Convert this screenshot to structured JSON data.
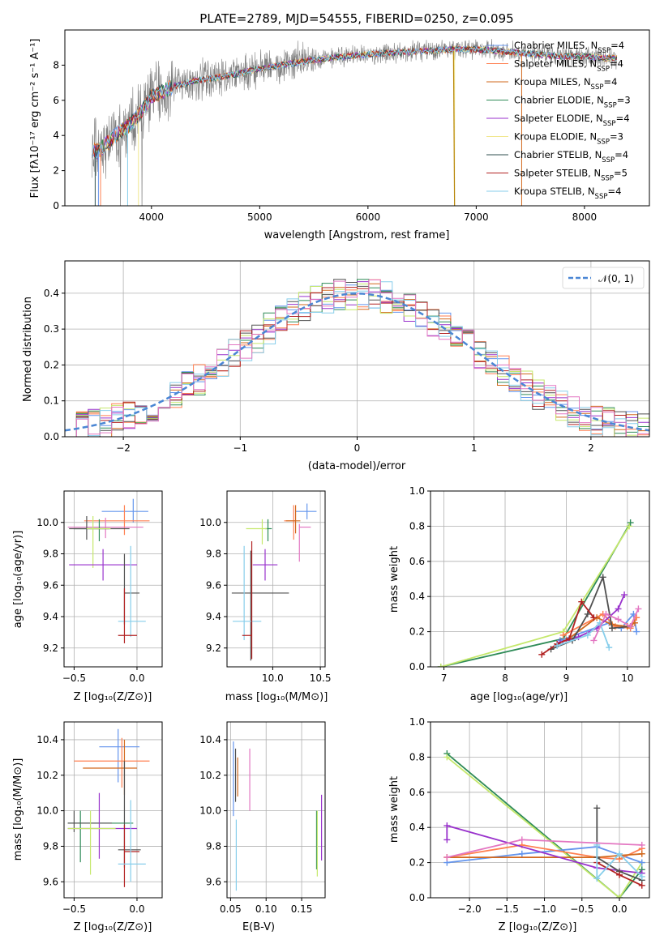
{
  "chart_data": [
    {
      "id": "spectrum",
      "type": "line",
      "title": "PLATE=2789, MJD=54555, FIBERID=0250, z=0.095",
      "xlabel": "wavelength [Angstrom, rest frame]",
      "ylabel": "Flux [fλ10⁻¹⁷ erg cm⁻² s⁻¹ A⁻¹]",
      "xlim": [
        3200,
        8600
      ],
      "ylim": [
        0,
        10
      ],
      "xticks": [
        4000,
        5000,
        6000,
        7000,
        8000
      ],
      "yticks": [
        0,
        2,
        4,
        6,
        8
      ],
      "grid": false,
      "legend_position": "top-right",
      "data_color": "#808080",
      "continuum": {
        "x": [
          3450,
          3500,
          3600,
          3700,
          3800,
          3900,
          4000,
          4100,
          4200,
          4400,
          4600,
          4800,
          5000,
          5200,
          5500,
          5800,
          6000,
          6200,
          6500,
          6800,
          7000,
          7200,
          7400,
          7600,
          7800,
          8000,
          8200,
          8300
        ],
        "y": [
          3.2,
          3.1,
          3.6,
          4.2,
          4.6,
          5.3,
          6.2,
          6.5,
          6.8,
          7.1,
          7.3,
          7.5,
          7.8,
          8.0,
          8.3,
          8.5,
          8.6,
          8.7,
          8.8,
          8.9,
          8.9,
          8.8,
          8.7,
          8.6,
          8.5,
          8.5,
          8.4,
          8.4
        ]
      },
      "legend": [
        {
          "name": "Chabrier MILES, N_SSP=4",
          "color": "#6495ed"
        },
        {
          "name": "Salpeter MILES, N_SSP=4",
          "color": "#ff7f50"
        },
        {
          "name": "Kroupa MILES, N_SSP=4",
          "color": "#d2691e"
        },
        {
          "name": "Chabrier ELODIE, N_SSP=3",
          "color": "#2e8b57"
        },
        {
          "name": "Salpeter ELODIE, N_SSP=4",
          "color": "#9932cc"
        },
        {
          "name": "Kroupa ELODIE, N_SSP=3",
          "color": "#f0e68c"
        },
        {
          "name": "Chabrier STELIB, N_SSP=4",
          "color": "#2f4f4f"
        },
        {
          "name": "Salpeter STELIB, N_SSP=5",
          "color": "#b22222"
        },
        {
          "name": "Kroupa STELIB, N_SSP=4",
          "color": "#87ceeb"
        }
      ]
    },
    {
      "id": "residuals",
      "type": "line",
      "xlabel": "(data-model)/error",
      "ylabel": "Normed distribution",
      "xlim": [
        -2.5,
        2.5
      ],
      "ylim": [
        0,
        0.49
      ],
      "xticks": [
        -2,
        -1,
        0,
        1,
        2
      ],
      "yticks": [
        0.0,
        0.1,
        0.2,
        0.3,
        0.4
      ],
      "grid": true,
      "legend_label": "𝒩(0, 1)",
      "legend_position": "top-right",
      "gaussian_color": "#4a86d4",
      "hist_colors": [
        "#6495ed",
        "#ff7f50",
        "#d2691e",
        "#2e8b57",
        "#9932cc",
        "#c5e86c",
        "#505050",
        "#b22222",
        "#87ceeb",
        "#e377c2"
      ],
      "hist_bin_width": 0.1
    },
    {
      "id": "age_vs_Z",
      "type": "scatter",
      "xlabel": "Z [log₁₀(Z/Z⊙)]",
      "ylabel": "age  [log₁₀(age/yr)]",
      "xlim": [
        -0.58,
        0.2
      ],
      "ylim": [
        9.08,
        10.2
      ],
      "xticks": [
        -0.5,
        0.0
      ],
      "yticks": [
        9.2,
        9.4,
        9.6,
        9.8,
        10.0
      ],
      "points": [
        {
          "x": -0.03,
          "y": 10.07,
          "xerr": [
            0.25,
            0.12
          ],
          "yerr": [
            0.07,
            0.08
          ],
          "color": "#6495ed"
        },
        {
          "x": -0.1,
          "y": 10.01,
          "xerr": [
            0.32,
            0.2
          ],
          "yerr": [
            0.09,
            0.1
          ],
          "color": "#ff7f50"
        },
        {
          "x": -0.25,
          "y": 9.97,
          "xerr": [
            0.3,
            0.3
          ],
          "yerr": [
            0.07,
            0.06
          ],
          "color": "#e377c2"
        },
        {
          "x": -0.3,
          "y": 9.96,
          "xerr": [
            0.2,
            0.08
          ],
          "yerr": [
            0.08,
            0.06
          ],
          "color": "#2e8b57"
        },
        {
          "x": -0.4,
          "y": 9.96,
          "xerr": [
            0.14,
            0.34
          ],
          "yerr": [
            0.07,
            0.08
          ],
          "color": "#505050"
        },
        {
          "x": -0.35,
          "y": 9.96,
          "xerr": [
            0.05,
            0.14
          ],
          "yerr": [
            0.25,
            0.08
          ],
          "color": "#c5e86c"
        },
        {
          "x": -0.27,
          "y": 9.73,
          "xerr": [
            0.27,
            0.27
          ],
          "yerr": [
            0.1,
            0.1
          ],
          "color": "#9932cc"
        },
        {
          "x": -0.1,
          "y": 9.55,
          "xerr": [
            0.0,
            0.12
          ],
          "yerr": [
            0.2,
            0.25
          ],
          "color": "#505050"
        },
        {
          "x": -0.05,
          "y": 9.37,
          "xerr": [
            0.1,
            0.12
          ],
          "yerr": [
            0.1,
            0.48
          ],
          "color": "#87ceeb"
        },
        {
          "x": -0.1,
          "y": 9.28,
          "xerr": [
            0.05,
            0.1
          ],
          "yerr": [
            0.05,
            0.3
          ],
          "color": "#b22222"
        }
      ]
    },
    {
      "id": "age_vs_mass",
      "type": "scatter",
      "xlabel": "mass [log₁₀(M/M⊙)]",
      "ylabel": "",
      "xlim": [
        9.52,
        10.55
      ],
      "ylim": [
        9.08,
        10.2
      ],
      "xticks": [
        10.0,
        10.5
      ],
      "yticks": [
        9.2,
        9.4,
        9.6,
        9.8,
        10.0
      ],
      "points": [
        {
          "x": 10.36,
          "y": 10.07,
          "xerr": [
            0.12,
            0.1
          ],
          "yerr": [
            0.05,
            0.05
          ],
          "color": "#6495ed"
        },
        {
          "x": 10.22,
          "y": 10.01,
          "xerr": [
            0.1,
            0.02
          ],
          "yerr": [
            0.12,
            0.1
          ],
          "color": "#ff7f50"
        },
        {
          "x": 10.24,
          "y": 10.01,
          "xerr": [
            0.1,
            0.05
          ],
          "yerr": [
            0.08,
            0.1
          ],
          "color": "#d2691e"
        },
        {
          "x": 10.28,
          "y": 9.97,
          "xerr": [
            0.0,
            0.12
          ],
          "yerr": [
            0.22,
            0.02
          ],
          "color": "#e377c2"
        },
        {
          "x": 9.95,
          "y": 9.96,
          "xerr": [
            0.03,
            0.04
          ],
          "yerr": [
            0.08,
            0.06
          ],
          "color": "#2e8b57"
        },
        {
          "x": 9.89,
          "y": 9.96,
          "xerr": [
            0.17,
            0.05
          ],
          "yerr": [
            0.1,
            0.06
          ],
          "color": "#c5e86c"
        },
        {
          "x": 9.92,
          "y": 9.73,
          "xerr": [
            0.13,
            0.13
          ],
          "yerr": [
            0.1,
            0.1
          ],
          "color": "#9932cc"
        },
        {
          "x": 9.77,
          "y": 9.55,
          "xerr": [
            0.2,
            0.4
          ],
          "yerr": [
            0.43,
            0.27
          ],
          "color": "#505050"
        },
        {
          "x": 9.7,
          "y": 9.37,
          "xerr": [
            0.12,
            0.18
          ],
          "yerr": [
            0.12,
            0.48
          ],
          "color": "#87ceeb"
        },
        {
          "x": 9.78,
          "y": 9.28,
          "xerr": [
            0.1,
            0.0
          ],
          "yerr": [
            0.15,
            0.6
          ],
          "color": "#b22222"
        }
      ]
    },
    {
      "id": "massweight_vs_age",
      "type": "line",
      "xlabel": "age  [log₁₀(age/yr)]",
      "ylabel": "mass weight",
      "xlim": [
        6.78,
        10.36
      ],
      "ylim": [
        0,
        1.0
      ],
      "xticks": [
        7,
        8,
        9,
        10
      ],
      "yticks": [
        0.0,
        0.2,
        0.4,
        0.6,
        0.8,
        1.0
      ],
      "grid": true,
      "series": [
        {
          "color": "#2e8b57",
          "x": [
            6.95,
            8.95,
            10.05
          ],
          "y": [
            0.0,
            0.16,
            0.82
          ]
        },
        {
          "color": "#c5e86c",
          "x": [
            6.95,
            8.95,
            10.03
          ],
          "y": [
            0.0,
            0.2,
            0.8
          ]
        },
        {
          "color": "#6495ed",
          "x": [
            8.9,
            9.7,
            9.9,
            10.1,
            10.15
          ],
          "y": [
            0.15,
            0.25,
            0.22,
            0.3,
            0.2
          ]
        },
        {
          "color": "#ff7f50",
          "x": [
            8.95,
            9.6,
            9.8,
            10.05,
            10.15
          ],
          "y": [
            0.18,
            0.3,
            0.23,
            0.22,
            0.28
          ]
        },
        {
          "color": "#d2691e",
          "x": [
            9.0,
            9.5,
            9.75,
            10.0,
            10.12
          ],
          "y": [
            0.15,
            0.28,
            0.24,
            0.23,
            0.25
          ]
        },
        {
          "color": "#9932cc",
          "x": [
            8.9,
            9.2,
            9.5,
            9.85,
            9.95
          ],
          "y": [
            0.14,
            0.17,
            0.22,
            0.33,
            0.41
          ]
        },
        {
          "color": "#505050",
          "x": [
            8.75,
            9.1,
            9.35,
            9.6,
            9.75,
            10.05
          ],
          "y": [
            0.1,
            0.15,
            0.3,
            0.51,
            0.22,
            0.23
          ]
        },
        {
          "color": "#b22222",
          "x": [
            8.6,
            8.85,
            9.05,
            9.25,
            9.45
          ],
          "y": [
            0.07,
            0.13,
            0.16,
            0.37,
            0.28
          ]
        },
        {
          "color": "#87ceeb",
          "x": [
            8.85,
            9.35,
            9.55,
            9.7
          ],
          "y": [
            0.12,
            0.18,
            0.25,
            0.11
          ]
        },
        {
          "color": "#e377c2",
          "x": [
            9.45,
            9.65,
            9.85,
            10.05,
            10.18
          ],
          "y": [
            0.15,
            0.3,
            0.27,
            0.23,
            0.33
          ]
        }
      ]
    },
    {
      "id": "mass_vs_Z",
      "type": "scatter",
      "xlabel": "Z [log₁₀(Z/Z⊙)]",
      "ylabel": "mass [log₁₀(M/M⊙)]",
      "xlim": [
        -0.58,
        0.2
      ],
      "ylim": [
        9.51,
        10.5
      ],
      "xticks": [
        -0.5,
        0.0
      ],
      "yticks": [
        9.6,
        9.8,
        10.0,
        10.2,
        10.4
      ],
      "points": [
        {
          "x": -0.15,
          "y": 10.36,
          "xerr": [
            0.15,
            0.17
          ],
          "yerr": [
            0.2,
            0.1
          ],
          "color": "#6495ed"
        },
        {
          "x": -0.12,
          "y": 10.28,
          "xerr": [
            0.38,
            0.22
          ],
          "yerr": [
            0.15,
            0.13
          ],
          "color": "#ff7f50"
        },
        {
          "x": -0.1,
          "y": 10.24,
          "xerr": [
            0.33,
            0.1
          ],
          "yerr": [
            0.15,
            0.16
          ],
          "color": "#d2691e"
        },
        {
          "x": -0.45,
          "y": 9.93,
          "xerr": [
            0.1,
            0.42
          ],
          "yerr": [
            0.22,
            0.07
          ],
          "color": "#2e8b57"
        },
        {
          "x": -0.5,
          "y": 9.93,
          "xerr": [
            0.05,
            0.3
          ],
          "yerr": [
            0.05,
            0.07
          ],
          "color": "#505050"
        },
        {
          "x": -0.3,
          "y": 9.9,
          "xerr": [
            0.25,
            0.3
          ],
          "yerr": [
            0.17,
            0.2
          ],
          "color": "#9932cc"
        },
        {
          "x": -0.37,
          "y": 9.9,
          "xerr": [
            0.18,
            0.2
          ],
          "yerr": [
            0.26,
            0.1
          ],
          "color": "#c5e86c"
        },
        {
          "x": -0.1,
          "y": 9.78,
          "xerr": [
            0.05,
            0.13
          ],
          "yerr": [
            0.1,
            0.5
          ],
          "color": "#505050"
        },
        {
          "x": -0.1,
          "y": 9.77,
          "xerr": [
            0.0,
            0.12
          ],
          "yerr": [
            0.2,
            0.15
          ],
          "color": "#b22222"
        },
        {
          "x": -0.05,
          "y": 9.7,
          "xerr": [
            0.1,
            0.12
          ],
          "yerr": [
            0.1,
            0.36
          ],
          "color": "#87ceeb"
        }
      ]
    },
    {
      "id": "mass_vs_EBV",
      "type": "scatter",
      "xlabel": "E(B-V)",
      "ylabel": "",
      "xlim": [
        0.045,
        0.183
      ],
      "ylim": [
        9.51,
        10.5
      ],
      "xticks": [
        0.05,
        0.1,
        0.15
      ],
      "xticklabels": [
        "0.05",
        "0.10",
        "0.15"
      ],
      "yticks": [
        9.6,
        9.8,
        10.0,
        10.2,
        10.4
      ],
      "points": [
        {
          "x": 0.054,
          "y": 10.17,
          "xerr": [
            0,
            0
          ],
          "yerr": [
            0.2,
            0.22
          ],
          "color": "#6495ed"
        },
        {
          "x": 0.057,
          "y": 10.2,
          "xerr": [
            0,
            0
          ],
          "yerr": [
            0.15,
            0.15
          ],
          "color": "#505050"
        },
        {
          "x": 0.06,
          "y": 10.18,
          "xerr": [
            0,
            0
          ],
          "yerr": [
            0.1,
            0.12
          ],
          "color": "#d2691e"
        },
        {
          "x": 0.058,
          "y": 9.75,
          "xerr": [
            0,
            0
          ],
          "yerr": [
            0.2,
            0.2
          ],
          "color": "#87ceeb"
        },
        {
          "x": 0.077,
          "y": 10.2,
          "xerr": [
            0,
            0
          ],
          "yerr": [
            0.2,
            0.15
          ],
          "color": "#e377c2"
        },
        {
          "x": 0.171,
          "y": 9.87,
          "xerr": [
            0,
            0
          ],
          "yerr": [
            0.2,
            0.13
          ],
          "color": "#2e8b57"
        },
        {
          "x": 0.172,
          "y": 9.83,
          "xerr": [
            0,
            0
          ],
          "yerr": [
            0.2,
            0.17
          ],
          "color": "#c5e86c"
        },
        {
          "x": 0.178,
          "y": 9.92,
          "xerr": [
            0,
            0
          ],
          "yerr": [
            0.2,
            0.17
          ],
          "color": "#9932cc"
        }
      ]
    },
    {
      "id": "massweight_vs_Z",
      "type": "line",
      "xlabel": "Z [log₁₀(Z/Z⊙)]",
      "ylabel": "mass weight",
      "xlim": [
        -2.52,
        0.4
      ],
      "ylim": [
        0,
        1.0
      ],
      "xticks": [
        -2.0,
        -1.5,
        -1.0,
        -0.5,
        0.0
      ],
      "yticks": [
        0.0,
        0.2,
        0.4,
        0.6,
        0.8,
        1.0
      ],
      "grid": true,
      "series": [
        {
          "color": "#2e8b57",
          "x": [
            -2.3,
            0.0,
            0.3
          ],
          "y": [
            0.82,
            0.0,
            0.16
          ]
        },
        {
          "color": "#c5e86c",
          "x": [
            -2.3,
            0.0,
            0.3
          ],
          "y": [
            0.8,
            0.0,
            0.2
          ]
        },
        {
          "color": "#6495ed",
          "x": [
            -2.3,
            -1.3,
            -0.3,
            0.3
          ],
          "y": [
            0.2,
            0.25,
            0.29,
            0.2
          ]
        },
        {
          "color": "#ff7f50",
          "x": [
            -2.3,
            -1.3,
            -0.3,
            0.0,
            0.3
          ],
          "y": [
            0.23,
            0.3,
            0.23,
            0.22,
            0.28
          ]
        },
        {
          "color": "#d2691e",
          "x": [
            -2.3,
            -0.3,
            0.0,
            0.3
          ],
          "y": [
            0.23,
            0.23,
            0.24,
            0.25
          ]
        },
        {
          "color": "#9932cc",
          "x": [
            -2.3,
            -2.3,
            -0.3,
            0.3
          ],
          "y": [
            0.33,
            0.41,
            0.17,
            0.14
          ]
        },
        {
          "color": "#505050",
          "x": [
            -0.3,
            -0.3,
            0.0,
            0.3
          ],
          "y": [
            0.51,
            0.23,
            0.15,
            0.1
          ]
        },
        {
          "color": "#b22222",
          "x": [
            -0.3,
            0.0,
            0.3
          ],
          "y": [
            0.2,
            0.13,
            0.07
          ]
        },
        {
          "color": "#87ceeb",
          "x": [
            -0.3,
            -0.3,
            0.0,
            0.3
          ],
          "y": [
            0.3,
            0.11,
            0.25,
            0.12
          ]
        },
        {
          "color": "#e377c2",
          "x": [
            -2.3,
            -1.3,
            0.3
          ],
          "y": [
            0.23,
            0.33,
            0.3
          ]
        }
      ]
    }
  ]
}
